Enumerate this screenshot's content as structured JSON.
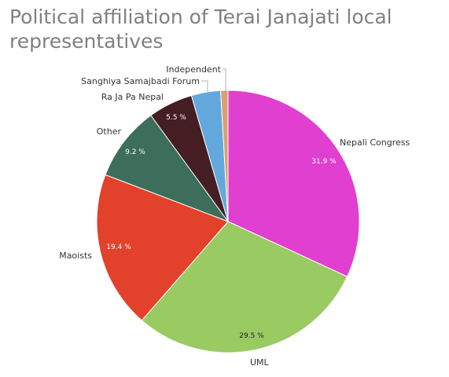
{
  "chart_data": {
    "type": "pie",
    "title": "Political affiliation of Terai Janajati local representatives",
    "slices": [
      {
        "label": "Nepali Congress",
        "value": 31.9,
        "value_label": "31.9 %",
        "color": "#e03fcf"
      },
      {
        "label": "UML",
        "value": 29.5,
        "value_label": "29.5 %",
        "color": "#9aca62"
      },
      {
        "label": "Maoists",
        "value": 19.4,
        "value_label": "19.4 %",
        "color": "#e2412b"
      },
      {
        "label": "Other",
        "value": 9.2,
        "value_label": "9.2 %",
        "color": "#3c6e5b"
      },
      {
        "label": "Ra Ja Pa Nepal",
        "value": 5.5,
        "value_label": "5.5 %",
        "color": "#441e23"
      },
      {
        "label": "Sanghiya Samajbadi Forum",
        "value": 3.6,
        "value_label": "",
        "color": "#63a8dc"
      },
      {
        "label": "Independent",
        "value": 0.9,
        "value_label": "",
        "color": "#d9a075"
      }
    ]
  }
}
